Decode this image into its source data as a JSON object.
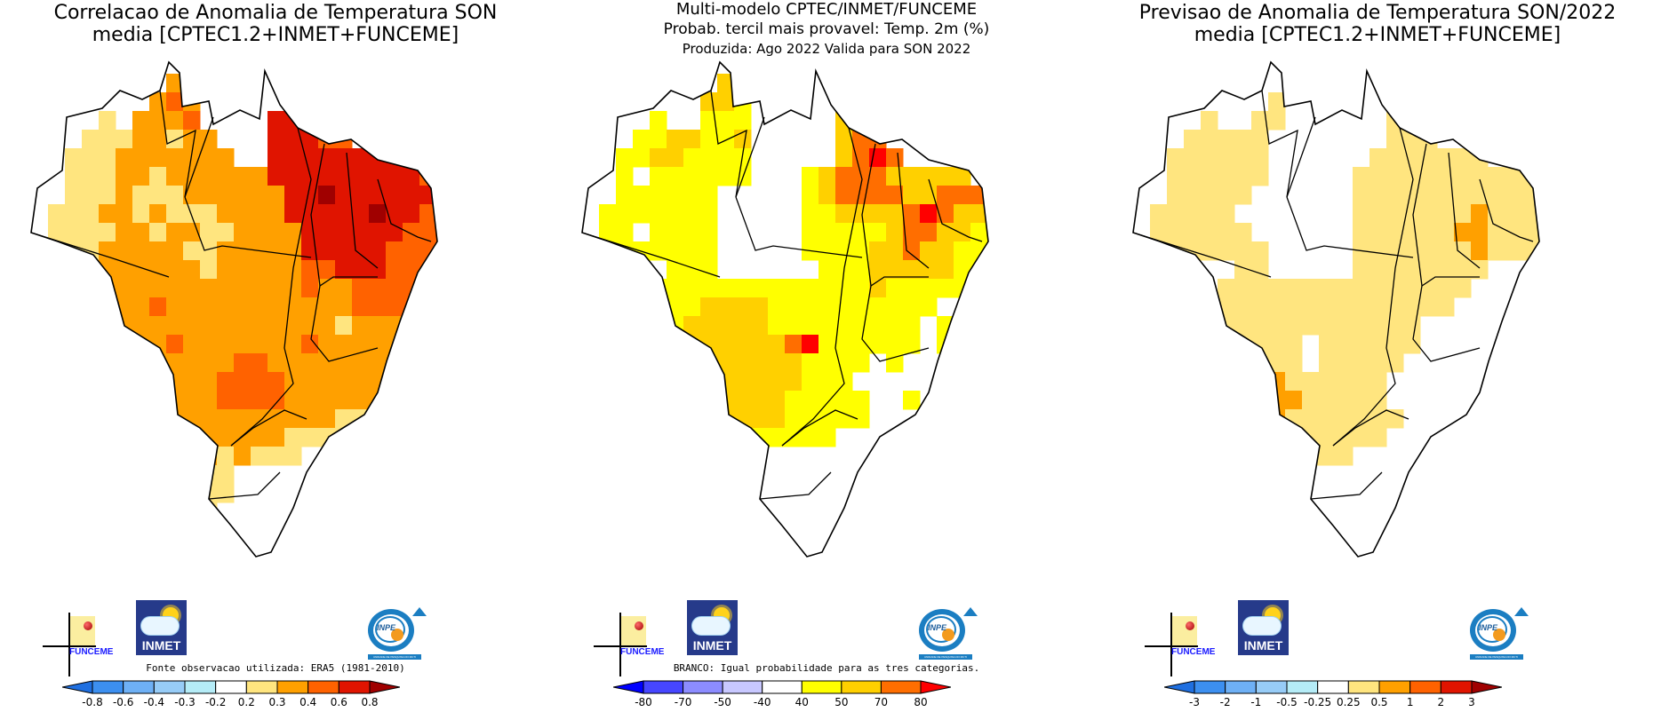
{
  "panels": [
    {
      "id": "correlation",
      "title_lines": [
        "Correlacao de Anomalia de Temperatura SON",
        "media [CPTEC1.2+INMET+FUNCEME]"
      ],
      "note": "Fonte observacao utilizada: ERA5 (1981-2010)",
      "colorbar": {
        "ticks": [
          "-0.8",
          "-0.6",
          "-0.4",
          "-0.3",
          "-0.2",
          "0.2",
          "0.3",
          "0.4",
          "0.6",
          "0.8"
        ],
        "colors": [
          "#1f6fe0",
          "#3c8ff0",
          "#6eb0f5",
          "#97ccf7",
          "#b5ecf7",
          "#ffffff",
          "#ffe57f",
          "#ffa000",
          "#ff6200",
          "#e01400",
          "#a00000"
        ]
      },
      "grid_rows": [
        "...........................",
        "........7......8...........",
        ".......787.....88..........",
        "....6.7778....998..........",
        "...66677677...99988........",
        "..6667777777..99999999.....",
        "..66677677777799999999988..",
        "..666766677777799a9999998..",
        ".6667767666777799999a99888.",
        ".66667767766777799999988888",
        "666677777667777799999888768",
        "666677777767777788999888858",
        ".66777777777777787788888777",
        "..7777787777777777788887787",
        "...677777777777777677777777",
        "....7777877777778777777766.",
        "....677777778877777777766..",
        ".....6677778888777777766...",
        ".....777777888877777766....",
        "......77777777777766666....",
        "......7777777776666........",
        ".......777767666...........",
        "........6666...............",
        ".........666...............",
        "........666................",
        ".......66..................",
        "......66..................."
      ]
    },
    {
      "id": "probability",
      "title_lines": [
        "Multi-modelo CPTEC/INMET/FUNCEME",
        "Probab. tercil mais provavel: Temp. 2m (%)",
        "Produzida: Ago 2022  Valida para SON 2022"
      ],
      "note": "BRANCO: Igual probabilidade para as tres categorias.",
      "colorbar": {
        "ticks": [
          "-80",
          "-70",
          "-50",
          "-40",
          "40",
          "50",
          "70",
          "80"
        ],
        "colors": [
          "#0000ff",
          "#4646ff",
          "#8c8cff",
          "#c8c8ff",
          "#ffffff",
          "#ffff00",
          "#ffd000",
          "#ff6e00",
          "#ff0000"
        ]
      },
      "grid_rows": [
        "...........................",
        "........6..................",
        ".......665.................",
        "....5..555.....66..........",
        "...5566556.....677.........",
        "..55665555.....6787........",
        "..5.555555...5677766666....",
        "..555555.....567777667776..",
        ".5555555.....55666678766...",
        ".55.5555.....55555677665...",
        "55555555.....5555667665555.",
        "5555.555......555666665555.",
        ".55555555555555556555555555",
        "..5555566665555555555...555",
        "...55566666555555555.5.55..",
        "....5566666678555555.55....",
        "....5566666665555.5........",
        ".....55666666555...........",
        ".....556666655555..5.......",
        "......55666655555..........",
        "......555555555............",
        ".......55..................",
        "........5..................",
        ".........5.................",
        "...........................",
        "...........................",
        "..........................."
      ]
    },
    {
      "id": "forecast",
      "title_lines": [
        "Previsao de Anomalia de Temperatura SON/2022",
        "media [CPTEC1.2+INMET+FUNCEME]"
      ],
      "note": "",
      "colorbar": {
        "ticks": [
          "-3",
          "-2",
          "-1",
          "-0.5",
          "-0.25",
          "0.25",
          "0.5",
          "1",
          "2",
          "3"
        ],
        "colors": [
          "#1f6fe0",
          "#3c8ff0",
          "#6eb0f5",
          "#97ccf7",
          "#b5ecf7",
          "#ffffff",
          "#ffe57f",
          "#ffa000",
          "#ff6200",
          "#e01400",
          "#a00000"
        ]
      },
      "grid_rows": [
        "...........................",
        "..........................",
        "........6..................",
        "....6..66......66..........",
        "...66666.......666.........",
        "..666666......6666666......",
        "..666666.....66666666666...",
        "..66666......66666666666...",
        ".66666.......6666666766666.",
        ".666666......66666677666666",
        "66666666.....666666676666..",
        "6666..66.....66666666......",
        ".66..666666666666666.......",
        "..6..66666666666666........",
        "....6666666666666..........",
        "....666666.666666..........",
        ".....66666.66666...........",
        "......777666666............",
        "......777766666............",
        "......7776666666...........",
        ".......66666666............",
        "........66666..............",
        "...........................",
        "...........................",
        "...........................",
        "...........................",
        "..........................."
      ]
    }
  ],
  "logos": {
    "funceme": "FUNCEME",
    "inmet": "INMET",
    "inpe": "INPE",
    "inpe_band": "UNIDADE DE PESQUISA DO MCTI"
  }
}
